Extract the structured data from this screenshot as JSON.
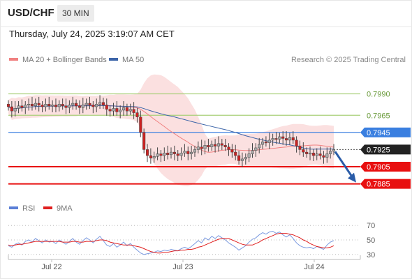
{
  "header": {
    "pair": "USD/CHF",
    "timeframe": "30 MIN",
    "datetime": "Thursday, July 24, 2025 3:19:07 AM CET"
  },
  "legend_main": [
    {
      "label": "MA 20 + Bollinger Bands",
      "color": "#f08080"
    },
    {
      "label": "MA 50",
      "color": "#3c64a8"
    }
  ],
  "credit": "Research © 2025 Trading Central",
  "legend_rsi": [
    {
      "label": "RSI",
      "color": "#5b7fd6"
    },
    {
      "label": "9MA",
      "color": "#e02020"
    }
  ],
  "colors": {
    "resistance": "#a8cf78",
    "pivot": "#3a7fe0",
    "support": "#e81010",
    "up_candle": "#aaaaaa",
    "down_candle": "#cc2222",
    "band_fill": "#fbe0e0"
  },
  "chart_data": [
    {
      "type": "candlestick",
      "ylim": [
        0.787,
        0.801
      ],
      "x_tick_labels": [
        "Jul 22",
        "Jul 23",
        "Jul 24"
      ],
      "levels": [
        {
          "value": 0.799,
          "label": "0.7990",
          "kind": "resistance"
        },
        {
          "value": 0.7965,
          "label": "0.7965",
          "kind": "resistance"
        },
        {
          "value": 0.7945,
          "label": "0.7945",
          "kind": "pivot"
        },
        {
          "value": 0.7905,
          "label": "0.7905",
          "kind": "support"
        },
        {
          "value": 0.7885,
          "label": "0.7885",
          "kind": "support"
        }
      ],
      "last_price": {
        "value": 0.7925,
        "label": "0.7925"
      },
      "forecast_target": 0.7885,
      "close": [
        0.7975,
        0.797,
        0.7973,
        0.7976,
        0.7974,
        0.7977,
        0.7978,
        0.7976,
        0.7979,
        0.7977,
        0.7975,
        0.7978,
        0.7976,
        0.7977,
        0.7975,
        0.7978,
        0.7976,
        0.7974,
        0.7977,
        0.7979,
        0.7976,
        0.7974,
        0.7977,
        0.7979,
        0.7977,
        0.7975,
        0.7978,
        0.798,
        0.7977,
        0.7972,
        0.797,
        0.7973,
        0.7969,
        0.7971,
        0.7974,
        0.797,
        0.7972,
        0.7968,
        0.7963,
        0.7945,
        0.7925,
        0.7918,
        0.7915,
        0.7917,
        0.792,
        0.7918,
        0.7921,
        0.7919,
        0.7922,
        0.792,
        0.7918,
        0.7921,
        0.7923,
        0.792,
        0.7922,
        0.7925,
        0.7928,
        0.7926,
        0.793,
        0.7928,
        0.7931,
        0.7929,
        0.7932,
        0.793,
        0.7928,
        0.7925,
        0.7922,
        0.7918,
        0.7912,
        0.7914,
        0.7916,
        0.792,
        0.7924,
        0.7927,
        0.7931,
        0.7934,
        0.7933,
        0.7936,
        0.7938,
        0.7937,
        0.794,
        0.7938,
        0.7936,
        0.7939,
        0.7936,
        0.7929,
        0.7925,
        0.7922,
        0.792,
        0.7921,
        0.7918,
        0.792,
        0.7918,
        0.7916,
        0.792,
        0.7923,
        0.7925
      ]
    },
    {
      "type": "line",
      "title": "RSI",
      "ylim": [
        25,
        75
      ],
      "y_ticks": [
        30,
        50,
        70
      ],
      "series": [
        {
          "name": "RSI",
          "values": [
            42,
            40,
            44,
            46,
            43,
            48,
            50,
            47,
            52,
            49,
            46,
            50,
            47,
            48,
            45,
            50,
            47,
            44,
            48,
            52,
            47,
            44,
            49,
            53,
            50,
            46,
            51,
            55,
            49,
            43,
            41,
            45,
            40,
            43,
            47,
            42,
            45,
            40,
            36,
            32,
            30,
            31,
            32,
            33,
            35,
            34,
            36,
            35,
            37,
            36,
            35,
            38,
            40,
            38,
            41,
            45,
            49,
            46,
            53,
            50,
            55,
            52,
            56,
            53,
            50,
            46,
            43,
            40,
            36,
            39,
            42,
            47,
            51,
            53,
            57,
            60,
            58,
            61,
            62,
            59,
            61,
            57,
            54,
            57,
            52,
            46,
            42,
            40,
            39,
            40,
            38,
            41,
            39,
            37,
            43,
            47,
            49
          ]
        },
        {
          "name": "9MA",
          "values": [
            43,
            42,
            43,
            44,
            44,
            45,
            46,
            47,
            48,
            48,
            48,
            48,
            48,
            48,
            48,
            48,
            47,
            47,
            47,
            48,
            48,
            47,
            47,
            48,
            48,
            48,
            49,
            50,
            50,
            49,
            47,
            46,
            45,
            44,
            43,
            43,
            43,
            42,
            41,
            40,
            38,
            36,
            34,
            33,
            32,
            32,
            33,
            33,
            34,
            35,
            35,
            36,
            36,
            37,
            37,
            38,
            40,
            41,
            43,
            45,
            47,
            49,
            51,
            52,
            52,
            52,
            50,
            48,
            46,
            44,
            43,
            43,
            43,
            45,
            47,
            50,
            52,
            54,
            56,
            58,
            59,
            59,
            59,
            58,
            57,
            55,
            53,
            50,
            48,
            45,
            43,
            41,
            40,
            39,
            39,
            40,
            42
          ]
        }
      ]
    }
  ]
}
